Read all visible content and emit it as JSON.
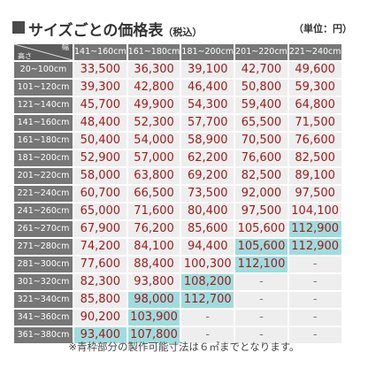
{
  "header": {
    "title": "サイズごとの価格表",
    "tax_note": "（税込）",
    "unit": "（単位：円）"
  },
  "table": {
    "corner": {
      "width_label": "幅",
      "height_label": "高さ"
    },
    "width_headers": [
      "141~160cm",
      "161~180cm",
      "181~200cm",
      "201~220cm",
      "221~240cm"
    ],
    "rows": [
      {
        "height": "20~100cm",
        "prices": [
          "33,500",
          "36,300",
          "39,100",
          "42,700",
          "49,600"
        ],
        "highlight": [
          false,
          false,
          false,
          false,
          false
        ]
      },
      {
        "height": "101~120cm",
        "prices": [
          "39,300",
          "42,800",
          "46,400",
          "50,800",
          "59,300"
        ],
        "highlight": [
          false,
          false,
          false,
          false,
          false
        ]
      },
      {
        "height": "121~140cm",
        "prices": [
          "45,700",
          "49,900",
          "54,300",
          "59,400",
          "64,800"
        ],
        "highlight": [
          false,
          false,
          false,
          false,
          false
        ]
      },
      {
        "height": "141~160cm",
        "prices": [
          "48,400",
          "52,300",
          "57,700",
          "65,500",
          "71,500"
        ],
        "highlight": [
          false,
          false,
          false,
          false,
          false
        ]
      },
      {
        "height": "161~180cm",
        "prices": [
          "50,400",
          "54,000",
          "58,900",
          "70,500",
          "76,600"
        ],
        "highlight": [
          false,
          false,
          false,
          false,
          false
        ]
      },
      {
        "height": "181~200cm",
        "prices": [
          "52,900",
          "57,000",
          "62,200",
          "76,600",
          "82,500"
        ],
        "highlight": [
          false,
          false,
          false,
          false,
          false
        ]
      },
      {
        "height": "201~220cm",
        "prices": [
          "58,000",
          "63,800",
          "69,200",
          "82,500",
          "89,100"
        ],
        "highlight": [
          false,
          false,
          false,
          false,
          false
        ]
      },
      {
        "height": "221~240cm",
        "prices": [
          "60,700",
          "66,500",
          "73,500",
          "92,000",
          "97,500"
        ],
        "highlight": [
          false,
          false,
          false,
          false,
          false
        ]
      },
      {
        "height": "241~260cm",
        "prices": [
          "65,000",
          "71,600",
          "80,400",
          "97,500",
          "104,100"
        ],
        "highlight": [
          false,
          false,
          false,
          false,
          false
        ]
      },
      {
        "height": "261~270cm",
        "prices": [
          "67,900",
          "76,200",
          "85,600",
          "105,600",
          "112,900"
        ],
        "highlight": [
          false,
          false,
          false,
          false,
          true
        ]
      },
      {
        "height": "271~280cm",
        "prices": [
          "74,200",
          "84,100",
          "94,400",
          "105,600",
          "112,900"
        ],
        "highlight": [
          false,
          false,
          false,
          true,
          true
        ]
      },
      {
        "height": "281~300cm",
        "prices": [
          "77,600",
          "88,400",
          "100,300",
          "112,100",
          "-"
        ],
        "highlight": [
          false,
          false,
          false,
          true,
          false
        ]
      },
      {
        "height": "301~320cm",
        "prices": [
          "82,300",
          "93,800",
          "108,200",
          "-",
          "-"
        ],
        "highlight": [
          false,
          false,
          true,
          false,
          false
        ]
      },
      {
        "height": "321~340cm",
        "prices": [
          "85,800",
          "98,000",
          "112,700",
          "-",
          "-"
        ],
        "highlight": [
          false,
          true,
          true,
          false,
          false
        ]
      },
      {
        "height": "341~360cm",
        "prices": [
          "90,200",
          "103,900",
          "-",
          "-",
          "-"
        ],
        "highlight": [
          false,
          true,
          false,
          false,
          false
        ]
      },
      {
        "height": "361~380cm",
        "prices": [
          "93,400",
          "107,800",
          "-",
          "-",
          "-"
        ],
        "highlight": [
          true,
          true,
          false,
          false,
          false
        ]
      }
    ]
  },
  "footnote": "※青枠部分の製作可能寸法は６㎡までとなります。",
  "colors": {
    "price_text": "#a01c1c",
    "cell_bg": "#eeeeee",
    "highlight_bg": "#9fdcde",
    "header_bg": "#777777",
    "corner_bg": "#5c5c5c"
  }
}
